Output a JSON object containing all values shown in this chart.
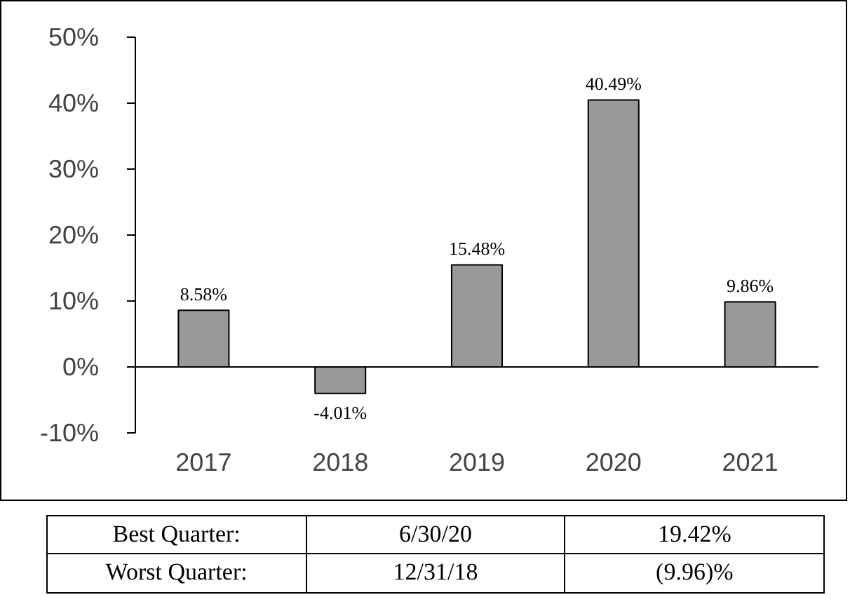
{
  "chart_data": {
    "type": "bar",
    "categories": [
      "2017",
      "2018",
      "2019",
      "2020",
      "2021"
    ],
    "values": [
      8.58,
      -4.01,
      15.48,
      40.49,
      9.86
    ],
    "value_labels": [
      "8.58%",
      "-4.01%",
      "15.48%",
      "40.49%",
      "9.86%"
    ],
    "color": "#999999",
    "ylim": [
      -10,
      50
    ],
    "yticks": [
      {
        "value": -10,
        "label": "-10%"
      },
      {
        "value": 0,
        "label": "0%"
      },
      {
        "value": 10,
        "label": "10%"
      },
      {
        "value": 20,
        "label": "20%"
      },
      {
        "value": 30,
        "label": "30%"
      },
      {
        "value": 40,
        "label": "40%"
      },
      {
        "value": 50,
        "label": "50%"
      }
    ],
    "annotations": [
      "Best Quarter:",
      "6/30/20",
      "19.42%",
      "Worst Quarter:",
      "12/31/18",
      "(9.96)%"
    ]
  }
}
